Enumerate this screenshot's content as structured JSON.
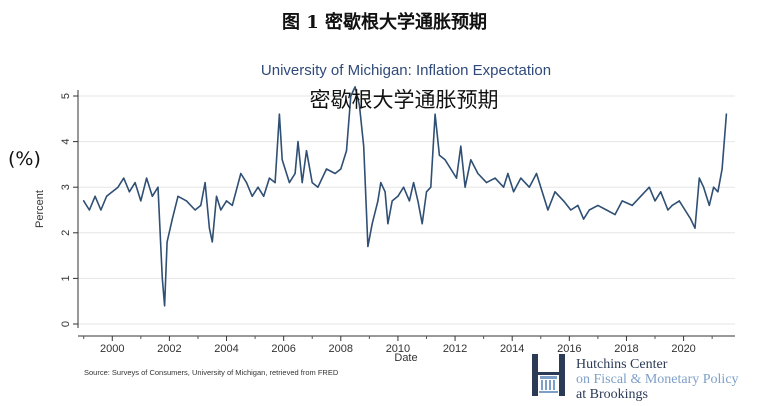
{
  "figure": {
    "caption": "图 1  密歇根大学通胀预期",
    "percent_annotation": "(%)",
    "overlay_title": "密歇根大学通胀预期"
  },
  "chart_data": {
    "type": "line",
    "title": "University of Michigan: Inflation Expectation",
    "xlabel": "Date",
    "ylabel": "Percent",
    "xlim": [
      1998.8,
      2021.8
    ],
    "ylim": [
      0,
      5
    ],
    "x_ticks": [
      2000,
      2002,
      2004,
      2006,
      2008,
      2010,
      2012,
      2014,
      2016,
      2018,
      2020
    ],
    "y_ticks": [
      0,
      1,
      2,
      3,
      4,
      5
    ],
    "grid": true,
    "line_color": "#2f4f74",
    "series": [
      {
        "points": [
          [
            1999.0,
            2.7
          ],
          [
            1999.2,
            2.5
          ],
          [
            1999.4,
            2.8
          ],
          [
            1999.6,
            2.5
          ],
          [
            1999.8,
            2.8
          ],
          [
            2000.0,
            2.9
          ],
          [
            2000.2,
            3.0
          ],
          [
            2000.4,
            3.2
          ],
          [
            2000.6,
            2.9
          ],
          [
            2000.8,
            3.1
          ],
          [
            2001.0,
            2.7
          ],
          [
            2001.2,
            3.2
          ],
          [
            2001.4,
            2.8
          ],
          [
            2001.6,
            3.0
          ],
          [
            2001.75,
            1.0
          ],
          [
            2001.83,
            0.4
          ],
          [
            2001.92,
            1.8
          ],
          [
            2002.1,
            2.3
          ],
          [
            2002.3,
            2.8
          ],
          [
            2002.6,
            2.7
          ],
          [
            2002.9,
            2.5
          ],
          [
            2003.1,
            2.6
          ],
          [
            2003.25,
            3.1
          ],
          [
            2003.4,
            2.1
          ],
          [
            2003.5,
            1.8
          ],
          [
            2003.65,
            2.8
          ],
          [
            2003.8,
            2.5
          ],
          [
            2004.0,
            2.7
          ],
          [
            2004.2,
            2.6
          ],
          [
            2004.5,
            3.3
          ],
          [
            2004.7,
            3.1
          ],
          [
            2004.9,
            2.8
          ],
          [
            2005.1,
            3.0
          ],
          [
            2005.3,
            2.8
          ],
          [
            2005.5,
            3.2
          ],
          [
            2005.7,
            3.1
          ],
          [
            2005.85,
            4.6
          ],
          [
            2005.95,
            3.6
          ],
          [
            2006.2,
            3.1
          ],
          [
            2006.4,
            3.3
          ],
          [
            2006.5,
            4.0
          ],
          [
            2006.65,
            3.1
          ],
          [
            2006.8,
            3.8
          ],
          [
            2007.0,
            3.1
          ],
          [
            2007.2,
            3.0
          ],
          [
            2007.5,
            3.4
          ],
          [
            2007.8,
            3.3
          ],
          [
            2008.0,
            3.4
          ],
          [
            2008.2,
            3.8
          ],
          [
            2008.35,
            5.0
          ],
          [
            2008.5,
            5.2
          ],
          [
            2008.65,
            4.8
          ],
          [
            2008.8,
            3.9
          ],
          [
            2008.95,
            1.7
          ],
          [
            2009.1,
            2.2
          ],
          [
            2009.3,
            2.7
          ],
          [
            2009.4,
            3.1
          ],
          [
            2009.55,
            2.9
          ],
          [
            2009.65,
            2.2
          ],
          [
            2009.8,
            2.7
          ],
          [
            2010.0,
            2.8
          ],
          [
            2010.2,
            3.0
          ],
          [
            2010.4,
            2.7
          ],
          [
            2010.55,
            3.1
          ],
          [
            2010.7,
            2.7
          ],
          [
            2010.85,
            2.2
          ],
          [
            2011.0,
            2.9
          ],
          [
            2011.15,
            3.0
          ],
          [
            2011.3,
            4.6
          ],
          [
            2011.45,
            3.7
          ],
          [
            2011.65,
            3.6
          ],
          [
            2011.85,
            3.4
          ],
          [
            2012.05,
            3.2
          ],
          [
            2012.2,
            3.9
          ],
          [
            2012.35,
            3.0
          ],
          [
            2012.55,
            3.6
          ],
          [
            2012.8,
            3.3
          ],
          [
            2013.1,
            3.1
          ],
          [
            2013.4,
            3.2
          ],
          [
            2013.7,
            3.0
          ],
          [
            2013.85,
            3.3
          ],
          [
            2014.05,
            2.9
          ],
          [
            2014.3,
            3.2
          ],
          [
            2014.6,
            3.0
          ],
          [
            2014.85,
            3.3
          ],
          [
            2015.1,
            2.8
          ],
          [
            2015.25,
            2.5
          ],
          [
            2015.5,
            2.9
          ],
          [
            2015.8,
            2.7
          ],
          [
            2016.05,
            2.5
          ],
          [
            2016.3,
            2.6
          ],
          [
            2016.5,
            2.3
          ],
          [
            2016.7,
            2.5
          ],
          [
            2017.0,
            2.6
          ],
          [
            2017.3,
            2.5
          ],
          [
            2017.6,
            2.4
          ],
          [
            2017.85,
            2.7
          ],
          [
            2018.2,
            2.6
          ],
          [
            2018.5,
            2.8
          ],
          [
            2018.8,
            3.0
          ],
          [
            2019.0,
            2.7
          ],
          [
            2019.2,
            2.9
          ],
          [
            2019.45,
            2.5
          ],
          [
            2019.6,
            2.6
          ],
          [
            2019.85,
            2.7
          ],
          [
            2020.05,
            2.5
          ],
          [
            2020.25,
            2.3
          ],
          [
            2020.4,
            2.1
          ],
          [
            2020.55,
            3.2
          ],
          [
            2020.7,
            3.0
          ],
          [
            2020.9,
            2.6
          ],
          [
            2021.05,
            3.0
          ],
          [
            2021.2,
            2.9
          ],
          [
            2021.35,
            3.4
          ],
          [
            2021.5,
            4.6
          ]
        ]
      }
    ]
  },
  "source": "Source: Surveys of Consumers, University of Michigan, retrieved from FRED",
  "branding": {
    "line1": "Hutchins Center",
    "line2": "on Fiscal & Monetary Policy",
    "line3": "at Brookings",
    "primary_color": "#2b3a55",
    "secondary_color": "#7ea0c8"
  }
}
